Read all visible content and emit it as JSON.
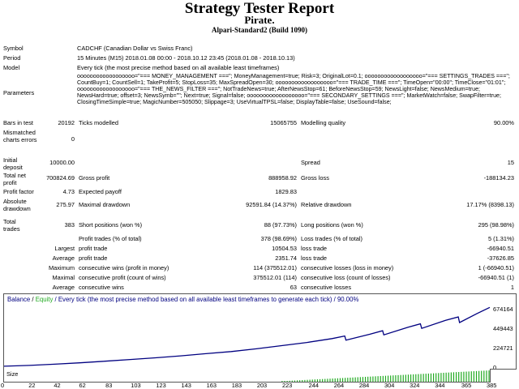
{
  "header": {
    "title": "Strategy Tester Report",
    "expert": "Pirate.",
    "server": "Alpari-Standard2 (Build 1090)"
  },
  "summary": {
    "symbol_label": "Symbol",
    "symbol_value": "CADCHF (Canadian Dollar vs Swiss Franc)",
    "period_label": "Period",
    "period_value": "15 Minutes (M15) 2018.01.08 00:00 - 2018.10.12 23:45 (2018.01.08 - 2018.10.13)",
    "model_label": "Model",
    "model_value": "Every tick (the most precise method based on all available least timeframes)",
    "params_label": "Parameters",
    "params_value": "oooooooooooooooooo=\"=== MONEY_MANAGEMENT ===\"; MoneyManagement=true; Risk=3; OriginalLot=0.1; oooooooooooooooooo=\"=== SETTINGS_TRADES ===\"; CountBuy=1; CountSell=1; TakeProfit=5; StopLoss=35; MaxSpreadOpen=30; oooooooooooooooooo=\"=== TRADE_TIME ===\"; TimeOpen=\"00:00\"; TimeClose=\"01:01\"; oooooooooooooooooo=\"=== THE_NEWS_FILTER ===\"; NotTradeNews=true; AfterNewsStop=61; BeforeNewsStop=59; NewsLight=false; NewsMedium=true; NewsHard=true; offset=3; NewsSymb=\"\"; Next=true; Signal=false; oooooooooooooooooo=\"=== SECONDARY_SETTINGS ===\"; MarketWatch=false; SwapFilter=true; ClosingTimeSimple=true; MagicNumber=505050; Slippage=3; UseVirtualTPSL=false; DisplayTable=false; UseSound=false;",
    "bars_label": "Bars in test",
    "bars_value": "20192",
    "ticks_label": "Ticks modelled",
    "ticks_value": "15065755",
    "quality_label": "Modelling quality",
    "quality_value": "90.00%",
    "mismatched_label": "Mismatched charts errors",
    "mismatched_value": "0"
  },
  "stats": {
    "deposit_label": "Initial deposit",
    "deposit_value": "10000.00",
    "spread_label": "Spread",
    "spread_value": "15",
    "net_label": "Total net profit",
    "net_value": "700824.69",
    "gross_profit_label": "Gross profit",
    "gross_profit_value": "888958.92",
    "gross_loss_label": "Gross loss",
    "gross_loss_value": "-188134.23",
    "pf_label": "Profit factor",
    "pf_value": "4.73",
    "payoff_label": "Expected payoff",
    "payoff_value": "1829.83",
    "abs_dd_label": "Absolute drawdown",
    "abs_dd_value": "275.97",
    "max_dd_label": "Maximal drawdown",
    "max_dd_value": "92591.84 (14.37%)",
    "rel_dd_label": "Relative drawdown",
    "rel_dd_value": "17.17% (8398.13)",
    "trades_label": "Total trades",
    "trades_value": "383",
    "short_label": "Short positions (won %)",
    "short_value": "88 (97.73%)",
    "long_label": "Long positions (won %)",
    "long_value": "295 (98.98%)",
    "profit_trades_label": "Profit trades (% of total)",
    "profit_trades_value": "378 (98.69%)",
    "loss_trades_label": "Loss trades (% of total)",
    "loss_trades_value": "5 (1.31%)",
    "largest_label": "Largest",
    "largest_profit_label": "profit trade",
    "largest_profit_value": "10504.53",
    "largest_loss_label": "loss trade",
    "largest_loss_value": "-66940.51",
    "average_label": "Average",
    "avg_profit_label": "profit trade",
    "avg_profit_value": "2351.74",
    "avg_loss_label": "loss trade",
    "avg_loss_value": "-37626.85",
    "maximum_label": "Maximum",
    "max_wins_label": "consecutive wins (profit in money)",
    "max_wins_value": "114 (375512.01)",
    "max_losses_label": "consecutive losses (loss in money)",
    "max_losses_value": "1 (-66940.51)",
    "maximal_label": "Maximal",
    "maximal_profit_label": "consecutive profit (count of wins)",
    "maximal_profit_value": "375512.01 (114)",
    "maximal_loss_label": "consecutive loss (count of losses)",
    "maximal_loss_value": "-66940.51 (1)",
    "average2_label": "Average",
    "avg_wins_label": "consecutive wins",
    "avg_wins_value": "63",
    "avg_losses_label": "consecutive losses",
    "avg_losses_value": "1"
  },
  "chart": {
    "legend_balance": "Balance",
    "legend_sep": " / ",
    "legend_equity": "Equity",
    "legend_rest": " / Every tick (the most precise method based on all available least timeframes to generate each tick) / 90.00%",
    "size_label": "Size",
    "balance_color": "#000080",
    "equity_color": "#22aa22",
    "volume_color": "#22aa22"
  },
  "chart_data": {
    "type": "line",
    "y_ticks": [
      "674164",
      "449443",
      "224721",
      "0"
    ],
    "x_ticks": [
      "0",
      "22",
      "42",
      "62",
      "83",
      "103",
      "123",
      "143",
      "163",
      "183",
      "203",
      "223",
      "244",
      "264",
      "284",
      "304",
      "324",
      "344",
      "365",
      "385"
    ],
    "ylim": [
      0,
      674164
    ],
    "xlim": [
      0,
      385
    ],
    "series": [
      {
        "name": "Balance",
        "x": [
          0,
          20,
          40,
          60,
          80,
          100,
          120,
          140,
          160,
          180,
          200,
          220,
          240,
          260,
          270,
          271,
          290,
          300,
          301,
          320,
          330,
          331,
          350,
          360,
          361,
          375,
          385
        ],
        "y": [
          10000,
          20000,
          34000,
          50000,
          68000,
          88000,
          108000,
          130000,
          155000,
          180000,
          212000,
          248000,
          285000,
          330000,
          360000,
          312000,
          380000,
          420000,
          373000,
          460000,
          500000,
          448000,
          540000,
          580000,
          515000,
          620000,
          690000
        ]
      }
    ],
    "volume_series": {
      "x_start": 220,
      "x_end": 385,
      "values_start": 0.05,
      "values_end": 1.0
    }
  }
}
